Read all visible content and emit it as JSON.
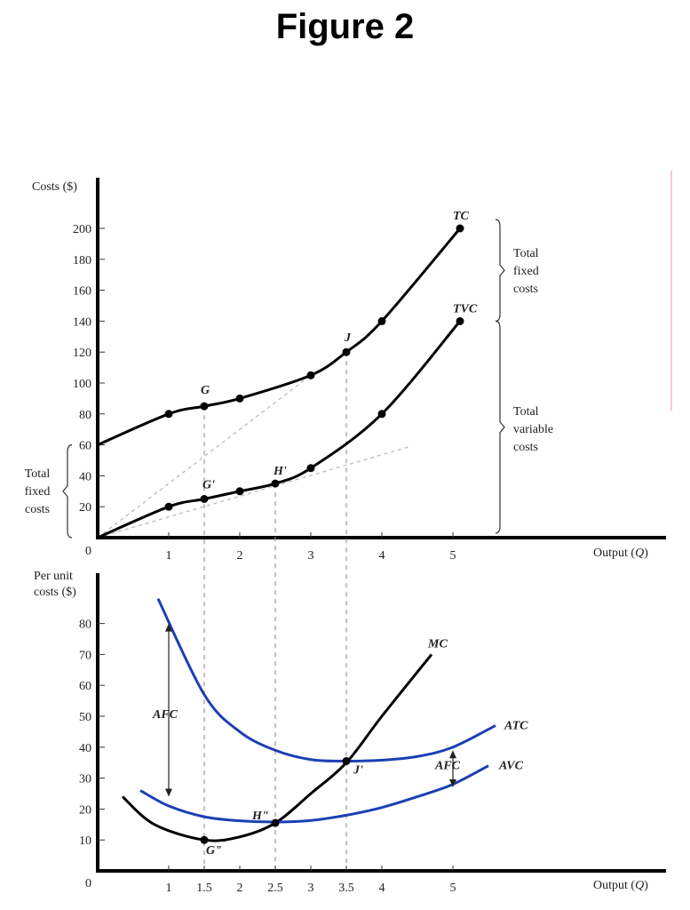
{
  "figure_title": "Figure 2",
  "chart_data": [
    {
      "type": "line",
      "ylabel": "Costs ($)",
      "xlabel": "Output (Q)",
      "origin_label": "0",
      "xlim": [
        0,
        5.6
      ],
      "ylim": [
        0,
        200
      ],
      "xticks": [
        1,
        2,
        3,
        4,
        5
      ],
      "yticks": [
        20,
        40,
        60,
        80,
        100,
        120,
        140,
        160,
        180,
        200
      ],
      "series": [
        {
          "name": "TC",
          "x": [
            0,
            1,
            1.5,
            2,
            3,
            3.5,
            4,
            5.1
          ],
          "y": [
            60,
            80,
            85,
            90,
            105,
            120,
            140,
            200
          ]
        },
        {
          "name": "TVC",
          "x": [
            0,
            1,
            1.5,
            2,
            2.5,
            3,
            4,
            5.1
          ],
          "y": [
            0,
            20,
            25,
            30,
            35,
            45,
            80,
            140
          ]
        }
      ],
      "points": [
        {
          "label": "G",
          "x": 1.5,
          "y": 85
        },
        {
          "label": "J",
          "x": 3.5,
          "y": 120
        },
        {
          "label": "G'",
          "x": 1.5,
          "y": 25
        },
        {
          "label": "H'",
          "x": 2.5,
          "y": 35
        }
      ],
      "brackets": [
        {
          "text": [
            "Total",
            "fixed",
            "costs"
          ],
          "from": 0,
          "to": 60,
          "side": "left"
        },
        {
          "text": [
            "Total",
            "fixed",
            "costs"
          ],
          "from": 140,
          "to": 200,
          "side": "right"
        },
        {
          "text": [
            "Total",
            "variable",
            "costs"
          ],
          "from": 0,
          "to": 140,
          "side": "right"
        }
      ]
    },
    {
      "type": "line",
      "ylabel_lines": [
        "Per unit",
        "costs ($)"
      ],
      "xlabel": "Output (Q)",
      "origin_label": "0",
      "xlim": [
        0,
        5.6
      ],
      "ylim": [
        0,
        90
      ],
      "xticks": [
        1,
        1.5,
        2,
        2.5,
        3,
        3.5,
        4,
        5
      ],
      "xtick_labels": [
        "1",
        "1.5",
        "2",
        "2.5",
        "3",
        "3.5",
        "4",
        "5"
      ],
      "yticks": [
        10,
        20,
        30,
        40,
        50,
        60,
        70,
        80
      ],
      "series": [
        {
          "name": "MC",
          "color": "#000000",
          "x": [
            0.35,
            0.8,
            1.5,
            2,
            2.5,
            3,
            3.5,
            4,
            4.7
          ],
          "y": [
            24,
            15,
            10,
            11,
            15.5,
            25,
            35,
            50,
            70
          ]
        },
        {
          "name": "ATC",
          "color": "#1b3fb4",
          "x": [
            0.85,
            1.5,
            2,
            2.5,
            3,
            3.5,
            4,
            4.5,
            5,
            5.6
          ],
          "y": [
            88,
            57,
            45,
            39,
            36,
            35.5,
            35.8,
            37,
            40,
            47
          ]
        },
        {
          "name": "AVC",
          "color": "#1b3fb4",
          "x": [
            0.6,
            1,
            1.5,
            2,
            2.5,
            3,
            3.5,
            4,
            4.5,
            5,
            5.5
          ],
          "y": [
            26,
            21,
            17.5,
            16.2,
            15.8,
            16.3,
            18,
            20.5,
            24,
            28,
            34
          ]
        }
      ],
      "points": [
        {
          "label": "G\"",
          "x": 1.5,
          "y": 10
        },
        {
          "label": "H\"",
          "x": 2.5,
          "y": 15.5
        },
        {
          "label": "J'",
          "x": 3.5,
          "y": 35.5
        }
      ],
      "annotations": [
        {
          "text": "AFC",
          "x": 1,
          "from": 24,
          "to": 80
        },
        {
          "text": "AFC",
          "x": 5,
          "from": 27,
          "to": 39
        }
      ]
    }
  ]
}
